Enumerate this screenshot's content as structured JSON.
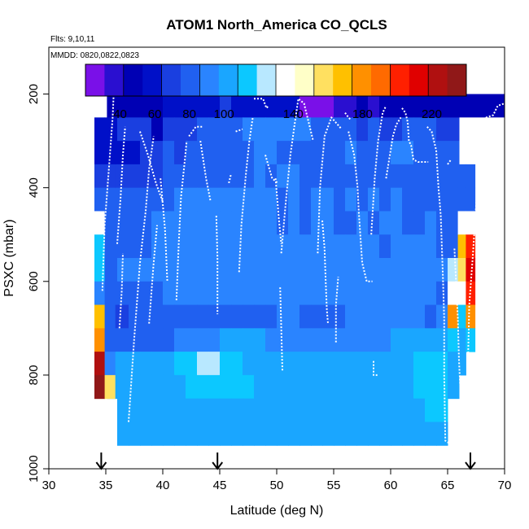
{
  "chart_data": {
    "type": "heatmap",
    "title": "ATOM1 North_America CO_QCLS",
    "flights_note": "Flts: 9,10,11",
    "dates_note": "MMDD: 0820,0822,0823",
    "xlabel": "Latitude (deg N)",
    "ylabel": "PSXC (mbar)",
    "xlim": [
      30,
      70
    ],
    "ylim": [
      1000,
      100
    ],
    "x_ticks": [
      "30",
      "35",
      "40",
      "45",
      "50",
      "55",
      "60",
      "65",
      "70"
    ],
    "y_ticks": [
      "200",
      "400",
      "600",
      "800",
      "1000"
    ],
    "colorbar": {
      "range": [
        20,
        240
      ],
      "tick_values": [
        40,
        60,
        80,
        100,
        140,
        180,
        220
      ],
      "tick_labels": [
        "40",
        "60",
        "80",
        "100",
        "140",
        "180",
        "220"
      ],
      "colors": [
        "#7a10e8",
        "#2a0fd0",
        "#0000b4",
        "#0010c8",
        "#1a3fe0",
        "#2060f0",
        "#2a84ff",
        "#1aa6ff",
        "#0cc8ff",
        "#b8e8ff",
        "#ffffff",
        "#ffffc8",
        "#ffe060",
        "#ffc000",
        "#ff9000",
        "#ff6a00",
        "#ff2000",
        "#e00000",
        "#b01010",
        "#901818"
      ]
    },
    "arrows_at_latitude": [
      34.6,
      44.8,
      67.0
    ],
    "column_edges": [
      35.1,
      36.0,
      37.0,
      38.0,
      39.0,
      40.0,
      41.0,
      42.0,
      43.0,
      44.0,
      45.0,
      46.0,
      47.0,
      48.0,
      49.0,
      50.0,
      51.0,
      52.0,
      53.0,
      54.0,
      55.0,
      56.0,
      57.0,
      58.0,
      59.0,
      60.0,
      61.0,
      62.0,
      63.0,
      64.0,
      65.0,
      66.0
    ],
    "levels_mbar": [
      175,
      225,
      275,
      325,
      375,
      425,
      475,
      525,
      575,
      625,
      675,
      725,
      775,
      825,
      875,
      925
    ],
    "grid_values": [
      [
        null,
        null,
        null,
        null,
        null,
        null,
        null,
        null,
        null,
        null,
        null,
        null,
        null,
        null,
        null,
        null,
        null,
        null,
        null,
        null,
        null,
        null,
        null,
        null,
        null,
        null,
        null,
        null,
        null,
        null,
        null
      ],
      [
        48,
        45,
        47,
        50,
        52,
        55,
        56,
        58,
        60,
        62,
        64,
        62,
        60,
        58,
        55,
        55,
        58,
        30,
        25,
        28,
        32,
        38,
        42,
        40,
        44,
        45,
        46,
        45,
        42,
        40,
        38
      ],
      [
        60,
        66,
        68,
        65,
        44,
        66,
        70,
        74,
        76,
        82,
        84,
        85,
        86,
        88,
        88,
        88,
        90,
        86,
        85,
        84,
        82,
        80,
        70,
        82,
        70,
        74,
        78,
        80,
        80,
        72,
        70
      ],
      [
        62,
        62,
        60,
        64,
        72,
        76,
        74,
        78,
        80,
        80,
        82,
        82,
        84,
        86,
        86,
        85,
        84,
        84,
        80,
        78,
        82,
        90,
        82,
        80,
        84,
        88,
        86,
        84,
        80,
        84,
        83
      ],
      [
        64,
        68,
        70,
        72,
        74,
        76,
        78,
        78,
        80,
        82,
        82,
        84,
        84,
        86,
        84,
        86,
        86,
        84,
        82,
        82,
        84,
        82,
        82,
        84,
        80,
        82,
        80,
        84,
        82,
        84,
        80
      ],
      [
        78,
        80,
        78,
        82,
        84,
        84,
        86,
        88,
        88,
        90,
        90,
        88,
        88,
        86,
        86,
        84,
        86,
        84,
        88,
        86,
        84,
        86,
        84,
        86,
        84,
        88,
        84,
        84,
        82,
        82,
        82
      ],
      [
        80,
        78,
        82,
        84,
        86,
        88,
        90,
        92,
        92,
        90,
        90,
        88,
        88,
        88,
        86,
        84,
        86,
        84,
        86,
        86,
        84,
        84,
        86,
        84,
        86,
        86,
        84,
        84,
        86,
        84,
        80
      ],
      [
        84,
        82,
        84,
        82,
        86,
        88,
        90,
        92,
        92,
        92,
        94,
        94,
        92,
        90,
        88,
        88,
        88,
        86,
        88,
        88,
        86,
        88,
        86,
        86,
        84,
        86,
        88,
        86,
        86,
        84,
        82
      ],
      [
        85,
        86,
        88,
        88,
        90,
        92,
        92,
        92,
        94,
        94,
        94,
        92,
        92,
        92,
        90,
        90,
        90,
        88,
        90,
        88,
        86,
        86,
        88,
        86,
        86,
        86,
        86,
        88,
        86,
        86,
        120
      ],
      [
        80,
        82,
        82,
        84,
        84,
        86,
        88,
        88,
        90,
        90,
        90,
        88,
        88,
        88,
        88,
        88,
        88,
        86,
        86,
        86,
        86,
        88,
        88,
        86,
        86,
        88,
        88,
        86,
        86,
        84,
        140
      ],
      [
        72,
        74,
        76,
        76,
        78,
        78,
        80,
        80,
        80,
        82,
        84,
        84,
        84,
        84,
        84,
        86,
        86,
        84,
        84,
        84,
        84,
        86,
        86,
        86,
        86,
        86,
        86,
        86,
        84,
        86,
        180
      ],
      [
        78,
        80,
        80,
        80,
        82,
        84,
        86,
        88,
        92,
        96,
        98,
        100,
        100,
        98,
        96,
        94,
        94,
        94,
        92,
        92,
        92,
        94,
        94,
        96,
        96,
        98,
        98,
        100,
        100,
        100,
        110
      ],
      [
        98,
        100,
        100,
        100,
        102,
        104,
        110,
        112,
        120,
        122,
        115,
        110,
        105,
        104,
        102,
        102,
        104,
        104,
        104,
        104,
        104,
        104,
        104,
        106,
        106,
        106,
        106,
        108,
        108,
        110,
        105
      ],
      [
        100,
        100,
        100,
        100,
        102,
        104,
        105,
        108,
        112,
        115,
        112,
        110,
        108,
        106,
        106,
        106,
        106,
        106,
        106,
        106,
        106,
        106,
        106,
        106,
        106,
        106,
        106,
        108,
        108,
        108,
        106
      ],
      [
        null,
        102,
        102,
        102,
        102,
        104,
        104,
        104,
        106,
        106,
        106,
        106,
        106,
        106,
        106,
        106,
        106,
        106,
        106,
        106,
        106,
        106,
        106,
        106,
        106,
        106,
        106,
        106,
        108,
        108,
        null
      ],
      [
        null,
        104,
        104,
        104,
        104,
        104,
        104,
        104,
        104,
        104,
        104,
        104,
        104,
        104,
        104,
        104,
        104,
        104,
        104,
        104,
        104,
        104,
        104,
        104,
        104,
        104,
        104,
        104,
        104,
        104,
        null
      ]
    ],
    "left_columns": {
      "edges": [
        34.0,
        34.9,
        35.8
      ],
      "rows_from_mbar": [
        275,
        325,
        375,
        425,
        475,
        525,
        575,
        625,
        675,
        725,
        775,
        825
      ],
      "values": [
        [
          62,
          60
        ],
        [
          60,
          58
        ],
        [
          70,
          68
        ],
        [
          78,
          75
        ],
        [
          130,
          80
        ],
        [
          118,
          82
        ],
        [
          110,
          84
        ],
        [
          90,
          85
        ],
        [
          170,
          84
        ],
        [
          180,
          84
        ],
        [
          220,
          86
        ],
        [
          230,
          160
        ]
      ]
    },
    "right_columns": {
      "edges": [
        65.9,
        66.6,
        67.4
      ],
      "rows_from_mbar": [
        375,
        425,
        475,
        525,
        575,
        625,
        675,
        725,
        775
      ],
      "values": [
        [
          82,
          84
        ],
        [
          84,
          78
        ],
        [
          140,
          130
        ],
        [
          170,
          200
        ],
        [
          160,
          210
        ],
        [
          130,
          200
        ],
        [
          110,
          180
        ],
        [
          105,
          110
        ],
        [
          104,
          null
        ]
      ]
    },
    "top_extension": {
      "from_lat": 63.0,
      "to_lat": 70.0,
      "mbar_top": 200,
      "mbar_bottom": 250,
      "value": 45
    },
    "flight_tracks": [
      [
        [
          34.7,
          620
        ],
        [
          34.9,
          480
        ],
        [
          35.3,
          350
        ],
        [
          35.6,
          250
        ],
        [
          35.7,
          195
        ],
        [
          36.4,
          195
        ]
      ],
      [
        [
          36.0,
          520
        ],
        [
          36.3,
          420
        ],
        [
          36.5,
          330
        ],
        [
          36.7,
          270
        ]
      ],
      [
        [
          36.2,
          700
        ],
        [
          36.4,
          620
        ],
        [
          36.5,
          540
        ]
      ],
      [
        [
          37.0,
          900
        ],
        [
          37.5,
          720
        ],
        [
          38.0,
          560
        ],
        [
          38.5,
          450
        ],
        [
          38.8,
          360
        ],
        [
          39.2,
          290
        ]
      ],
      [
        [
          38.8,
          690
        ],
        [
          39.2,
          560
        ],
        [
          39.5,
          480
        ]
      ],
      [
        [
          38.0,
          280
        ],
        [
          38.7,
          330
        ],
        [
          39.4,
          390
        ],
        [
          40.0,
          430
        ]
      ],
      [
        [
          39.8,
          380
        ],
        [
          40.2,
          490
        ],
        [
          40.4,
          600
        ]
      ],
      [
        [
          41.2,
          640
        ],
        [
          41.4,
          520
        ],
        [
          41.6,
          420
        ],
        [
          41.9,
          350
        ],
        [
          42.1,
          300
        ]
      ],
      [
        [
          42.3,
          290
        ],
        [
          42.9,
          270
        ],
        [
          43.5,
          270
        ]
      ],
      [
        [
          43.3,
          300
        ],
        [
          43.8,
          380
        ],
        [
          44.2,
          430
        ]
      ],
      [
        [
          44.7,
          460
        ],
        [
          44.8,
          550
        ],
        [
          44.8,
          670
        ]
      ],
      [
        [
          45.8,
          390
        ],
        [
          46.0,
          370
        ]
      ],
      [
        [
          46.4,
          280
        ],
        [
          47.0,
          275
        ]
      ],
      [
        [
          46.7,
          580
        ],
        [
          46.9,
          480
        ],
        [
          47.3,
          370
        ],
        [
          47.6,
          300
        ],
        [
          47.9,
          250
        ]
      ],
      [
        [
          48.0,
          210
        ],
        [
          48.8,
          210
        ],
        [
          49.1,
          230
        ],
        [
          49.3,
          225
        ]
      ],
      [
        [
          49.0,
          330
        ],
        [
          49.6,
          380
        ],
        [
          50.1,
          390
        ]
      ],
      [
        [
          49.9,
          380
        ],
        [
          50.2,
          470
        ],
        [
          50.4,
          520
        ]
      ],
      [
        [
          50.5,
          790
        ],
        [
          50.4,
          700
        ],
        [
          50.3,
          610
        ]
      ],
      [
        [
          50.4,
          540
        ],
        [
          50.8,
          430
        ],
        [
          51.2,
          330
        ],
        [
          51.6,
          260
        ],
        [
          51.9,
          210
        ],
        [
          52.4,
          220
        ],
        [
          52.8,
          260
        ],
        [
          53.2,
          300
        ]
      ],
      [
        [
          53.6,
          540
        ],
        [
          53.7,
          470
        ],
        [
          53.8,
          400
        ],
        [
          54.2,
          290
        ],
        [
          54.8,
          250
        ],
        [
          55.7,
          275
        ]
      ],
      [
        [
          54.0,
          470
        ],
        [
          54.2,
          530
        ],
        [
          54.3,
          600
        ],
        [
          54.4,
          660
        ],
        [
          54.5,
          690
        ]
      ],
      [
        [
          55.2,
          730
        ],
        [
          55.2,
          650
        ],
        [
          55.4,
          590
        ]
      ],
      [
        [
          56.0,
          240
        ],
        [
          56.3,
          250
        ],
        [
          56.5,
          255
        ]
      ],
      [
        [
          56.3,
          280
        ],
        [
          56.8,
          330
        ],
        [
          57.1,
          400
        ],
        [
          57.2,
          450
        ],
        [
          57.5,
          560
        ],
        [
          57.9,
          600
        ],
        [
          58.4,
          600
        ]
      ],
      [
        [
          58.5,
          770
        ],
        [
          58.5,
          800
        ],
        [
          58.9,
          800
        ]
      ],
      [
        [
          58.3,
          500
        ],
        [
          58.6,
          380
        ],
        [
          58.9,
          300
        ],
        [
          59.3,
          240
        ],
        [
          59.6,
          225
        ]
      ],
      [
        [
          59.6,
          380
        ],
        [
          60.0,
          320
        ],
        [
          60.2,
          290
        ],
        [
          60.5,
          265
        ],
        [
          60.9,
          250
        ]
      ],
      [
        [
          61.0,
          230
        ],
        [
          61.3,
          240
        ],
        [
          61.5,
          260
        ],
        [
          61.6,
          300
        ],
        [
          61.8,
          310
        ],
        [
          62.0,
          340
        ],
        [
          62.4,
          345
        ],
        [
          63.3,
          345
        ]
      ],
      [
        [
          63.2,
          270
        ],
        [
          63.6,
          280
        ],
        [
          64.0,
          320
        ],
        [
          64.2,
          400
        ],
        [
          64.4,
          460
        ],
        [
          64.6,
          600
        ],
        [
          64.7,
          680
        ],
        [
          64.7,
          800
        ],
        [
          64.8,
          940
        ],
        [
          65.1,
          945
        ]
      ],
      [
        [
          65.6,
          530
        ],
        [
          65.9,
          680
        ],
        [
          66.0,
          770
        ],
        [
          66.2,
          870
        ]
      ],
      [
        [
          65.0,
          350
        ],
        [
          65.3,
          340
        ]
      ],
      [
        [
          66.2,
          340
        ],
        [
          67.0,
          340
        ]
      ],
      [
        [
          66.8,
          760
        ],
        [
          66.9,
          650
        ],
        [
          67.2,
          550
        ],
        [
          67.5,
          440
        ],
        [
          67.6,
          390
        ],
        [
          67.9,
          330
        ],
        [
          68.0,
          310
        ]
      ],
      [
        [
          67.3,
          300
        ],
        [
          68.0,
          270
        ],
        [
          68.4,
          250
        ],
        [
          69.0,
          245
        ],
        [
          69.4,
          225
        ],
        [
          70.0,
          220
        ]
      ]
    ]
  }
}
